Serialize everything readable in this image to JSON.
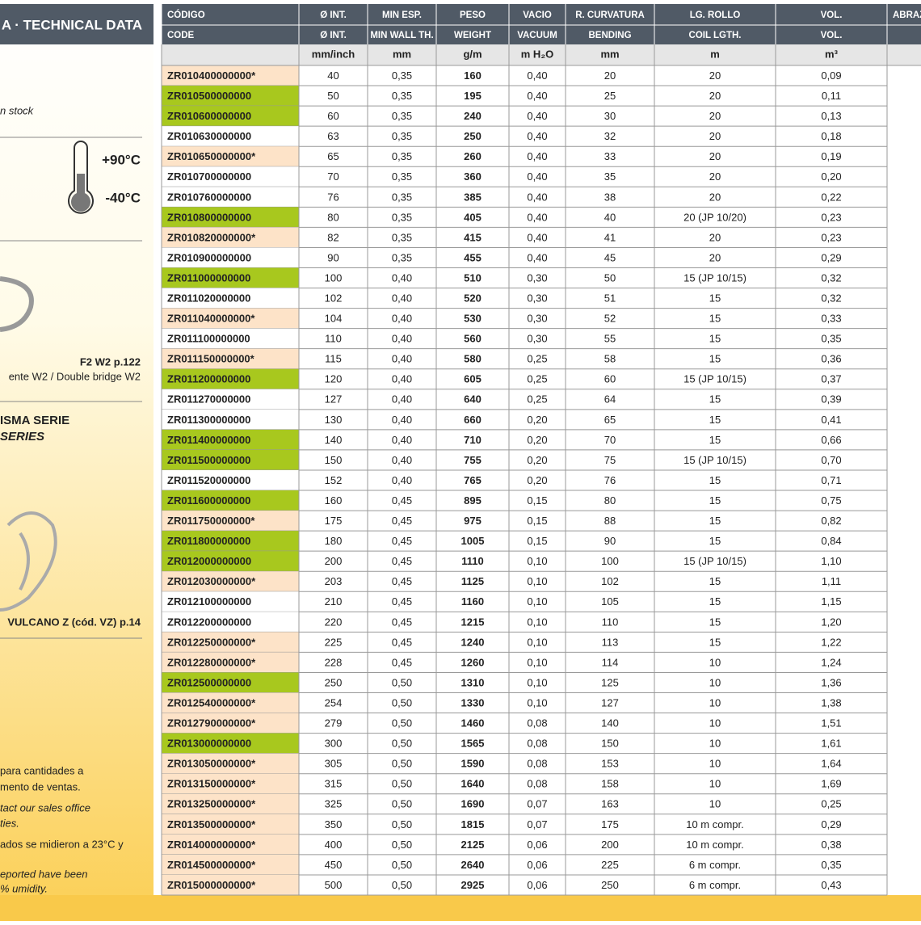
{
  "side": {
    "header": "A · TECHNICAL DATA",
    "stock": "n stock",
    "temp_max": "+90°C",
    "temp_min": "-40°C",
    "ref_clamp": "F2 W2 p.122",
    "clamp_desc": "ente W2 / Double bridge W2",
    "series_es": "ISMA SERIE",
    "series_en": "SERIES",
    "ref_vulcano": "VULCANO Z (cód. VZ) p.14",
    "notes": [
      "para cantidades a",
      "mento de ventas.",
      "tact our sales office",
      "ties.",
      "ados se midieron a 23°C y",
      "eported have been",
      "% umidity."
    ]
  },
  "table": {
    "header_es": [
      "CÓDIGO",
      "Ø INT.",
      "MIN ESP.",
      "PESO",
      "VACIO",
      "R. CURVATURA",
      "LG. ROLLO",
      "VOL.",
      "ABRAZ"
    ],
    "header_en": [
      "CODE",
      "Ø INT.",
      "MIN WALL TH.",
      "WEIGHT",
      "VACUUM",
      "BENDING",
      "COIL LGTH.",
      "VOL."
    ],
    "units": [
      "mm/inch",
      "mm",
      "g/m",
      "m H₂O",
      "mm",
      "m",
      "m³"
    ],
    "code_fills": [
      "#fde3c8",
      "#a8c81e",
      "#a8c81e",
      "#ffffff",
      "#fde3c8",
      "#ffffff",
      "#ffffff",
      "#a8c81e",
      "#fde3c8",
      "#ffffff",
      "#a8c81e",
      "#ffffff",
      "#fde3c8",
      "#ffffff",
      "#fde3c8",
      "#a8c81e",
      "#ffffff",
      "#ffffff",
      "#a8c81e",
      "#a8c81e",
      "#ffffff",
      "#a8c81e",
      "#fde3c8",
      "#a8c81e",
      "#a8c81e",
      "#fde3c8",
      "#ffffff",
      "#ffffff",
      "#fde3c8",
      "#fde3c8",
      "#a8c81e",
      "#fde3c8",
      "#fde3c8",
      "#a8c81e",
      "#fde3c8",
      "#fde3c8",
      "#fde3c8",
      "#fde3c8",
      "#fde3c8",
      "#fde3c8",
      "#fde3c8"
    ],
    "rows": [
      [
        "ZR010400000000*",
        "40",
        "0,35",
        "160",
        "0,40",
        "20",
        "20",
        "0,09"
      ],
      [
        "ZR010500000000",
        "50",
        "0,35",
        "195",
        "0,40",
        "25",
        "20",
        "0,11"
      ],
      [
        "ZR010600000000",
        "60",
        "0,35",
        "240",
        "0,40",
        "30",
        "20",
        "0,13"
      ],
      [
        "ZR010630000000",
        "63",
        "0,35",
        "250",
        "0,40",
        "32",
        "20",
        "0,18"
      ],
      [
        "ZR010650000000*",
        "65",
        "0,35",
        "260",
        "0,40",
        "33",
        "20",
        "0,19"
      ],
      [
        "ZR010700000000",
        "70",
        "0,35",
        "360",
        "0,40",
        "35",
        "20",
        "0,20"
      ],
      [
        "ZR010760000000",
        "76",
        "0,35",
        "385",
        "0,40",
        "38",
        "20",
        "0,22"
      ],
      [
        "ZR010800000000",
        "80",
        "0,35",
        "405",
        "0,40",
        "40",
        "20 (JP 10/20)",
        "0,23"
      ],
      [
        "ZR010820000000*",
        "82",
        "0,35",
        "415",
        "0,40",
        "41",
        "20",
        "0,23"
      ],
      [
        "ZR010900000000",
        "90",
        "0,35",
        "455",
        "0,40",
        "45",
        "20",
        "0,29"
      ],
      [
        "ZR011000000000",
        "100",
        "0,40",
        "510",
        "0,30",
        "50",
        "15 (JP 10/15)",
        "0,32"
      ],
      [
        "ZR011020000000",
        "102",
        "0,40",
        "520",
        "0,30",
        "51",
        "15",
        "0,32"
      ],
      [
        "ZR011040000000*",
        "104",
        "0,40",
        "530",
        "0,30",
        "52",
        "15",
        "0,33"
      ],
      [
        "ZR011100000000",
        "110",
        "0,40",
        "560",
        "0,30",
        "55",
        "15",
        "0,35"
      ],
      [
        "ZR011150000000*",
        "115",
        "0,40",
        "580",
        "0,25",
        "58",
        "15",
        "0,36"
      ],
      [
        "ZR011200000000",
        "120",
        "0,40",
        "605",
        "0,25",
        "60",
        "15 (JP 10/15)",
        "0,37"
      ],
      [
        "ZR011270000000",
        "127",
        "0,40",
        "640",
        "0,25",
        "64",
        "15",
        "0,39"
      ],
      [
        "ZR011300000000",
        "130",
        "0,40",
        "660",
        "0,20",
        "65",
        "15",
        "0,41"
      ],
      [
        "ZR011400000000",
        "140",
        "0,40",
        "710",
        "0,20",
        "70",
        "15",
        "0,66"
      ],
      [
        "ZR011500000000",
        "150",
        "0,40",
        "755",
        "0,20",
        "75",
        "15 (JP 10/15)",
        "0,70"
      ],
      [
        "ZR011520000000",
        "152",
        "0,40",
        "765",
        "0,20",
        "76",
        "15",
        "0,71"
      ],
      [
        "ZR011600000000",
        "160",
        "0,45",
        "895",
        "0,15",
        "80",
        "15",
        "0,75"
      ],
      [
        "ZR011750000000*",
        "175",
        "0,45",
        "975",
        "0,15",
        "88",
        "15",
        "0,82"
      ],
      [
        "ZR011800000000",
        "180",
        "0,45",
        "1005",
        "0,15",
        "90",
        "15",
        "0,84"
      ],
      [
        "ZR012000000000",
        "200",
        "0,45",
        "1110",
        "0,10",
        "100",
        "15 (JP 10/15)",
        "1,10"
      ],
      [
        "ZR012030000000*",
        "203",
        "0,45",
        "1125",
        "0,10",
        "102",
        "15",
        "1,11"
      ],
      [
        "ZR012100000000",
        "210",
        "0,45",
        "1160",
        "0,10",
        "105",
        "15",
        "1,15"
      ],
      [
        "ZR012200000000",
        "220",
        "0,45",
        "1215",
        "0,10",
        "110",
        "15",
        "1,20"
      ],
      [
        "ZR012250000000*",
        "225",
        "0,45",
        "1240",
        "0,10",
        "113",
        "15",
        "1,22"
      ],
      [
        "ZR012280000000*",
        "228",
        "0,45",
        "1260",
        "0,10",
        "114",
        "10",
        "1,24"
      ],
      [
        "ZR012500000000",
        "250",
        "0,50",
        "1310",
        "0,10",
        "125",
        "10",
        "1,36"
      ],
      [
        "ZR012540000000*",
        "254",
        "0,50",
        "1330",
        "0,10",
        "127",
        "10",
        "1,38"
      ],
      [
        "ZR012790000000*",
        "279",
        "0,50",
        "1460",
        "0,08",
        "140",
        "10",
        "1,51"
      ],
      [
        "ZR013000000000",
        "300",
        "0,50",
        "1565",
        "0,08",
        "150",
        "10",
        "1,61"
      ],
      [
        "ZR013050000000*",
        "305",
        "0,50",
        "1590",
        "0,08",
        "153",
        "10",
        "1,64"
      ],
      [
        "ZR013150000000*",
        "315",
        "0,50",
        "1640",
        "0,08",
        "158",
        "10",
        "1,69"
      ],
      [
        "ZR013250000000*",
        "325",
        "0,50",
        "1690",
        "0,07",
        "163",
        "10",
        "0,25"
      ],
      [
        "ZR013500000000*",
        "350",
        "0,50",
        "1815",
        "0,07",
        "175",
        "10 m compr.",
        "0,29"
      ],
      [
        "ZR014000000000*",
        "400",
        "0,50",
        "2125",
        "0,06",
        "200",
        "10 m compr.",
        "0,38"
      ],
      [
        "ZR014500000000*",
        "450",
        "0,50",
        "2640",
        "0,06",
        "225",
        "6 m compr.",
        "0,35"
      ],
      [
        "ZR015000000000*",
        "500",
        "0,50",
        "2925",
        "0,06",
        "250",
        "6 m compr.",
        "0,43"
      ]
    ]
  }
}
